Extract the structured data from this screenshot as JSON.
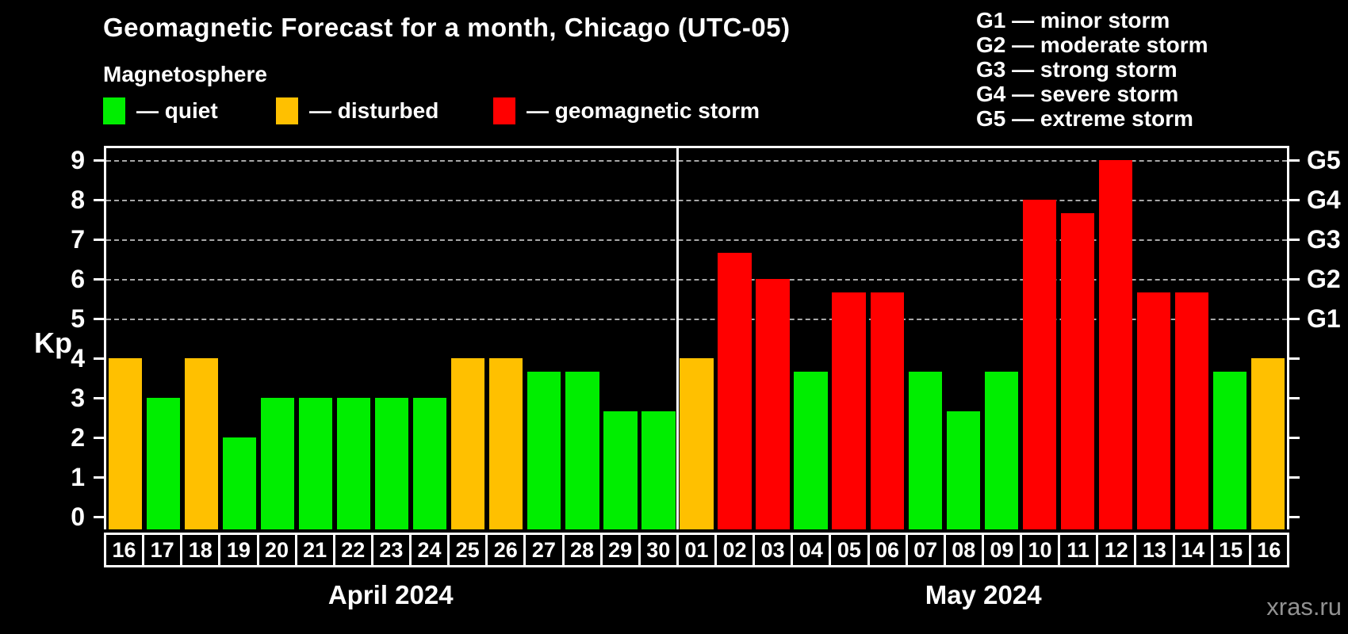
{
  "header": {
    "title": "Geomagnetic Forecast for a month, Chicago (UTC-05)",
    "subtitle": "Magnetosphere",
    "legend": [
      {
        "status": "quiet",
        "label": "— quiet"
      },
      {
        "status": "disturbed",
        "label": "— disturbed"
      },
      {
        "status": "storm",
        "label": "— geomagnetic storm"
      }
    ],
    "storm_scale": [
      "G1 — minor storm",
      "G2 — moderate storm",
      "G3 — strong storm",
      "G4 — severe storm",
      "G5 — extreme storm"
    ]
  },
  "watermark": "xras.ru",
  "chart_data": {
    "type": "bar",
    "title": "Geomagnetic Forecast for a month, Chicago (UTC-05)",
    "ylabel": "Kp",
    "ylim": [
      0,
      9
    ],
    "yticks": [
      0,
      1,
      2,
      3,
      4,
      5,
      6,
      7,
      8,
      9
    ],
    "grid_kp_levels": [
      5,
      6,
      7,
      8,
      9
    ],
    "right_axis": [
      {
        "kp": 5,
        "label": "G1"
      },
      {
        "kp": 6,
        "label": "G2"
      },
      {
        "kp": 7,
        "label": "G3"
      },
      {
        "kp": 8,
        "label": "G4"
      },
      {
        "kp": 9,
        "label": "G5"
      }
    ],
    "colors": {
      "quiet": "#00ee00",
      "disturbed": "#ffc000",
      "storm": "#ff0000"
    },
    "months": [
      {
        "label": "April 2024",
        "days": [
          {
            "day": "16",
            "kp": 4.0,
            "status": "disturbed"
          },
          {
            "day": "17",
            "kp": 3.0,
            "status": "quiet"
          },
          {
            "day": "18",
            "kp": 4.0,
            "status": "disturbed"
          },
          {
            "day": "19",
            "kp": 2.0,
            "status": "quiet"
          },
          {
            "day": "20",
            "kp": 3.0,
            "status": "quiet"
          },
          {
            "day": "21",
            "kp": 3.0,
            "status": "quiet"
          },
          {
            "day": "22",
            "kp": 3.0,
            "status": "quiet"
          },
          {
            "day": "23",
            "kp": 3.0,
            "status": "quiet"
          },
          {
            "day": "24",
            "kp": 3.0,
            "status": "quiet"
          },
          {
            "day": "25",
            "kp": 4.0,
            "status": "disturbed"
          },
          {
            "day": "26",
            "kp": 4.0,
            "status": "disturbed"
          },
          {
            "day": "27",
            "kp": 3.67,
            "status": "quiet"
          },
          {
            "day": "28",
            "kp": 3.67,
            "status": "quiet"
          },
          {
            "day": "29",
            "kp": 2.67,
            "status": "quiet"
          },
          {
            "day": "30",
            "kp": 2.67,
            "status": "quiet"
          }
        ]
      },
      {
        "label": "May 2024",
        "days": [
          {
            "day": "01",
            "kp": 4.0,
            "status": "disturbed"
          },
          {
            "day": "02",
            "kp": 6.67,
            "status": "storm"
          },
          {
            "day": "03",
            "kp": 6.0,
            "status": "storm"
          },
          {
            "day": "04",
            "kp": 3.67,
            "status": "quiet"
          },
          {
            "day": "05",
            "kp": 5.67,
            "status": "storm"
          },
          {
            "day": "06",
            "kp": 5.67,
            "status": "storm"
          },
          {
            "day": "07",
            "kp": 3.67,
            "status": "quiet"
          },
          {
            "day": "08",
            "kp": 2.67,
            "status": "quiet"
          },
          {
            "day": "09",
            "kp": 3.67,
            "status": "quiet"
          },
          {
            "day": "10",
            "kp": 8.0,
            "status": "storm"
          },
          {
            "day": "11",
            "kp": 7.67,
            "status": "storm"
          },
          {
            "day": "12",
            "kp": 9.0,
            "status": "storm"
          },
          {
            "day": "13",
            "kp": 5.67,
            "status": "storm"
          },
          {
            "day": "14",
            "kp": 5.67,
            "status": "storm"
          },
          {
            "day": "15",
            "kp": 3.67,
            "status": "quiet"
          },
          {
            "day": "16",
            "kp": 4.0,
            "status": "disturbed"
          }
        ]
      }
    ]
  }
}
